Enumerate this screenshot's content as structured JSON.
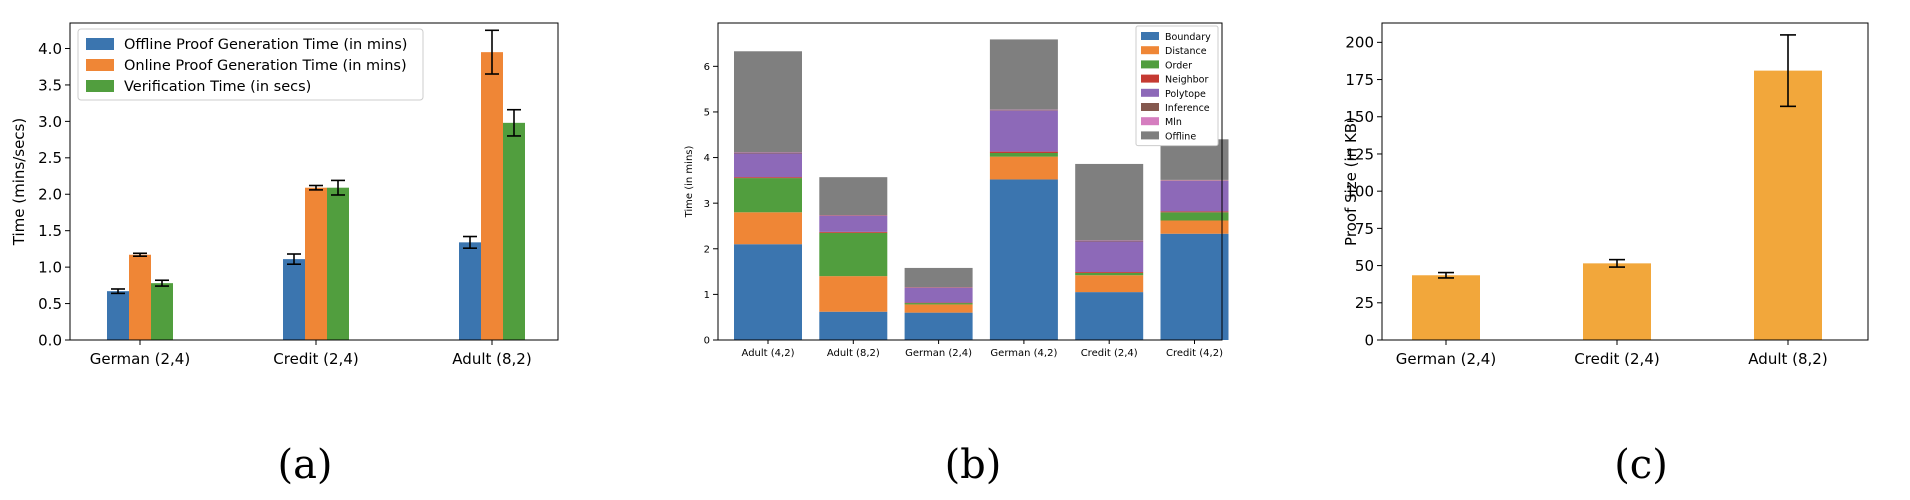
{
  "chart_data": [
    {
      "type": "bar",
      "caption": "(a)",
      "ylabel": "Time (mins/secs)",
      "categories": [
        "German (2,4)",
        "Credit (2,4)",
        "Adult (8,2)"
      ],
      "ylim": [
        0,
        4.35
      ],
      "yticks": [
        "0.0",
        "0.5",
        "1.0",
        "1.5",
        "2.0",
        "2.5",
        "3.0",
        "3.5",
        "4.0"
      ],
      "legend_position": "top-left",
      "series": [
        {
          "name": "Offline Proof Generation Time (in mins)",
          "color": "#3b75af",
          "values": [
            0.67,
            1.11,
            1.34
          ],
          "errors": [
            0.03,
            0.07,
            0.08
          ]
        },
        {
          "name": "Online Proof Generation Time (in mins)",
          "color": "#ef8636",
          "values": [
            1.17,
            2.09,
            3.95
          ],
          "errors": [
            0.02,
            0.03,
            0.3
          ]
        },
        {
          "name": "Verification Time (in secs)",
          "color": "#519e3e",
          "values": [
            0.78,
            2.09,
            2.98
          ],
          "errors": [
            0.04,
            0.1,
            0.18
          ]
        }
      ]
    },
    {
      "type": "bar",
      "stacked": true,
      "caption": "(b)",
      "ylabel": "Time (in mins)",
      "categories": [
        "Adult (4,2)",
        "Adult (8,2)",
        "German (2,4)",
        "German (4,2)",
        "Credit (2,4)",
        "Credit (4,2)"
      ],
      "ylim": [
        0,
        6.95
      ],
      "yticks": [
        "0",
        "1",
        "2",
        "3",
        "4",
        "5",
        "6"
      ],
      "legend_position": "top-right",
      "series": [
        {
          "name": "Boundary",
          "color": "#3b75af",
          "values": [
            2.1,
            0.62,
            0.6,
            3.52,
            1.05,
            2.33
          ]
        },
        {
          "name": "Distance",
          "color": "#ef8636",
          "values": [
            0.7,
            0.78,
            0.18,
            0.5,
            0.37,
            0.29
          ]
        },
        {
          "name": "Order",
          "color": "#519e3e",
          "values": [
            0.75,
            0.95,
            0.03,
            0.08,
            0.05,
            0.18
          ]
        },
        {
          "name": "Neighbor",
          "color": "#c53a32",
          "values": [
            0.02,
            0.02,
            0.01,
            0.03,
            0.02,
            0.02
          ]
        },
        {
          "name": "Polytope",
          "color": "#8d69b8",
          "values": [
            0.52,
            0.35,
            0.32,
            0.9,
            0.67,
            0.67
          ]
        },
        {
          "name": "Inference",
          "color": "#84584e",
          "values": [
            0.01,
            0.01,
            0.01,
            0.01,
            0.01,
            0.01
          ]
        },
        {
          "name": "Mln",
          "color": "#d57dbf",
          "values": [
            0.01,
            0.01,
            0.01,
            0.01,
            0.01,
            0.01
          ]
        },
        {
          "name": "Offline",
          "color": "#7f7f7f",
          "values": [
            2.22,
            0.83,
            0.42,
            1.54,
            1.68,
            0.89
          ]
        }
      ]
    },
    {
      "type": "bar",
      "caption": "(c)",
      "ylabel": "Proof Size (in KB)",
      "categories": [
        "German (2,4)",
        "Credit (2,4)",
        "Adult (8,2)"
      ],
      "ylim": [
        0,
        213
      ],
      "yticks": [
        "0",
        "25",
        "50",
        "75",
        "100",
        "125",
        "150",
        "175",
        "200"
      ],
      "series": [
        {
          "name": "",
          "color": "#f2a73b",
          "values": [
            43.5,
            51.5,
            181
          ],
          "errors": [
            1.8,
            2.5,
            24
          ]
        }
      ]
    }
  ]
}
